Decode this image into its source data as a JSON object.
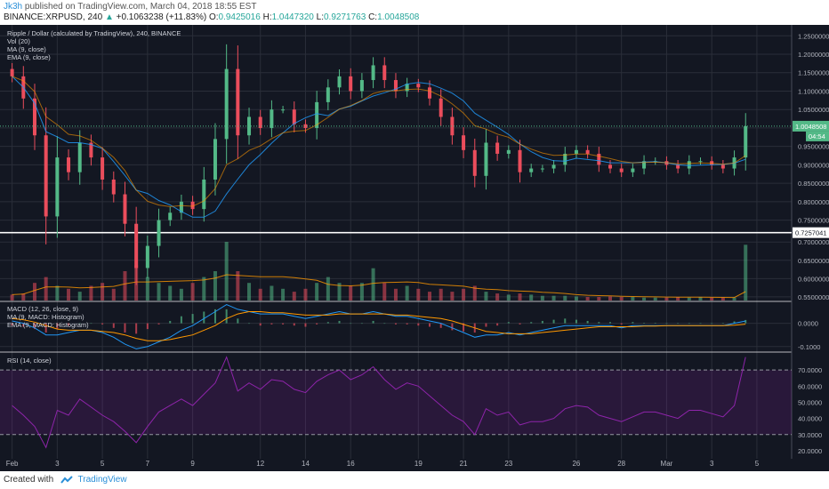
{
  "header": {
    "user": "Jk3h",
    "published_text": "published on TradingView.com, March 04, 2018 18:55 EST",
    "symbol_interval": "BINANCE:XRPUSD, 240",
    "change_arrow": "▲",
    "change_text": "+0.1063238 (+11.83%)",
    "o_label": "O:",
    "o_value": "0.9425016",
    "h_label": "H:",
    "h_value": "1.0447320",
    "l_label": "L:",
    "l_value": "0.9271763",
    "c_label": "C:",
    "c_value": "1.0048508",
    "price_label": "1.0048508"
  },
  "footer": {
    "created_with": "Created with",
    "brand": "TradingView"
  },
  "colors": {
    "background": "#131722",
    "up": "#53b987",
    "down": "#eb4d5c",
    "ma": "#2196f3",
    "ema": "#ff9800",
    "rsi": "#8e24aa",
    "grid": "#2a2e39"
  },
  "chart_data": [
    {
      "type": "candlestick",
      "title": "Ripple / Dollar (calculated by TradingView), 240, BINANCE",
      "indicators": [
        "Vol (20)",
        "MA (9, close)",
        "EMA (9, close)"
      ],
      "x_ticks": [
        "Feb",
        "3",
        "5",
        "7",
        "9",
        "12",
        "14",
        "16",
        "19",
        "21",
        "23",
        "26",
        "28",
        "Mar",
        "3",
        "5"
      ],
      "ylim": [
        0.72,
        1.27
      ],
      "y_ticks": [
        "1.2500000",
        "1.2000000",
        "1.1500000",
        "1.1000000",
        "1.0500000",
        "1.0000000",
        "0.9500000",
        "0.9000000",
        "0.8500000",
        "0.8000000",
        "0.7500000"
      ],
      "last_price": "1.0048508",
      "countdown": "04:54",
      "x_days": [
        0,
        0.5,
        1,
        1.5,
        2,
        2.5,
        3,
        3.5,
        4,
        4.5,
        5,
        5.5,
        6,
        6.5,
        7,
        7.5,
        8,
        8.5,
        9,
        9.5,
        10,
        10.5,
        11,
        11.5,
        12,
        12.5,
        13,
        13.5,
        14,
        14.5,
        15,
        15.5,
        16,
        16.5,
        17,
        17.5,
        18,
        18.5,
        19,
        19.5,
        20,
        20.5,
        21,
        21.5,
        22,
        22.5,
        23,
        23.5,
        24,
        24.5,
        25,
        25.5,
        26,
        26.5,
        27,
        27.5,
        28,
        28.5,
        29,
        29.5,
        30,
        30.5,
        31,
        31.5,
        32,
        32.5
      ],
      "close": [
        1.14,
        1.08,
        0.98,
        0.76,
        0.92,
        0.88,
        0.96,
        0.92,
        0.86,
        0.82,
        0.74,
        0.62,
        0.68,
        0.75,
        0.77,
        0.8,
        0.78,
        0.86,
        0.97,
        1.16,
        0.98,
        1.03,
        1.0,
        1.05,
        1.05,
        1.01,
        1.0,
        1.07,
        1.11,
        1.14,
        1.1,
        1.13,
        1.17,
        1.13,
        1.1,
        1.12,
        1.11,
        1.08,
        1.03,
        0.98,
        0.94,
        0.87,
        0.96,
        0.93,
        0.94,
        0.88,
        0.89,
        0.89,
        0.9,
        0.93,
        0.94,
        0.93,
        0.9,
        0.89,
        0.88,
        0.89,
        0.91,
        0.91,
        0.9,
        0.89,
        0.91,
        0.91,
        0.9,
        0.89,
        0.92,
        1.0048508
      ],
      "volume_ylim": [
        0.54,
        0.72
      ],
      "volume_ticks": [
        "0.7257041",
        "0.7000000",
        "0.6500000",
        "0.6000000",
        "0.5500000"
      ],
      "volume_marker": "0.7257041",
      "volume_relative": [
        0.1,
        0.12,
        0.3,
        0.4,
        0.25,
        0.2,
        0.15,
        0.25,
        0.3,
        0.2,
        0.5,
        0.6,
        0.4,
        0.3,
        0.25,
        0.2,
        0.3,
        0.4,
        0.5,
        1.0,
        0.5,
        0.3,
        0.2,
        0.25,
        0.2,
        0.15,
        0.2,
        0.3,
        0.4,
        0.3,
        0.25,
        0.3,
        0.55,
        0.3,
        0.2,
        0.25,
        0.2,
        0.15,
        0.2,
        0.15,
        0.2,
        0.25,
        0.15,
        0.12,
        0.1,
        0.12,
        0.1,
        0.08,
        0.08,
        0.08,
        0.07,
        0.06,
        0.06,
        0.07,
        0.06,
        0.06,
        0.05,
        0.05,
        0.05,
        0.06,
        0.05,
        0.06,
        0.05,
        0.05,
        0.05,
        0.95
      ]
    },
    {
      "type": "line",
      "title": "MACD (12, 26, close, 9)",
      "indicators": [
        "MA (9, MACD: Histogram)",
        "EMA (9, MACD: Histogram)"
      ],
      "y_ticks": [
        "0.0000",
        "-0.1000"
      ],
      "ylim": [
        -0.12,
        0.09
      ],
      "macd": [
        0.01,
        0.0,
        -0.02,
        -0.05,
        -0.05,
        -0.04,
        -0.03,
        -0.03,
        -0.04,
        -0.06,
        -0.09,
        -0.11,
        -0.1,
        -0.08,
        -0.06,
        -0.03,
        -0.01,
        0.02,
        0.05,
        0.08,
        0.06,
        0.05,
        0.04,
        0.04,
        0.04,
        0.03,
        0.02,
        0.03,
        0.04,
        0.05,
        0.04,
        0.04,
        0.05,
        0.04,
        0.03,
        0.03,
        0.02,
        0.01,
        0.0,
        -0.02,
        -0.04,
        -0.06,
        -0.05,
        -0.05,
        -0.04,
        -0.05,
        -0.04,
        -0.03,
        -0.02,
        -0.01,
        -0.01,
        -0.01,
        -0.01,
        -0.01,
        -0.02,
        -0.01,
        -0.01,
        -0.01,
        -0.01,
        -0.01,
        -0.01,
        -0.01,
        -0.01,
        -0.01,
        0.0,
        0.01
      ],
      "signal": [
        0.02,
        0.015,
        0.005,
        -0.01,
        -0.025,
        -0.03,
        -0.03,
        -0.03,
        -0.035,
        -0.04,
        -0.05,
        -0.065,
        -0.075,
        -0.075,
        -0.07,
        -0.06,
        -0.05,
        -0.03,
        -0.01,
        0.02,
        0.04,
        0.05,
        0.05,
        0.045,
        0.045,
        0.04,
        0.035,
        0.035,
        0.035,
        0.04,
        0.04,
        0.04,
        0.04,
        0.04,
        0.035,
        0.035,
        0.03,
        0.025,
        0.02,
        0.01,
        -0.005,
        -0.02,
        -0.035,
        -0.04,
        -0.045,
        -0.045,
        -0.045,
        -0.04,
        -0.035,
        -0.03,
        -0.025,
        -0.02,
        -0.015,
        -0.015,
        -0.015,
        -0.015,
        -0.012,
        -0.012,
        -0.01,
        -0.01,
        -0.01,
        -0.01,
        -0.01,
        -0.01,
        -0.008,
        -0.004
      ]
    },
    {
      "type": "line",
      "title": "RSI (14, close)",
      "y_ticks": [
        "70.0000",
        "60.0000",
        "50.0000",
        "40.0000",
        "30.0000",
        "20.0000"
      ],
      "ylim": [
        15,
        80
      ],
      "bands": [
        30,
        70
      ],
      "rsi": [
        48,
        42,
        35,
        22,
        45,
        42,
        52,
        47,
        42,
        38,
        32,
        25,
        35,
        44,
        48,
        52,
        48,
        55,
        62,
        78,
        57,
        62,
        58,
        64,
        63,
        58,
        56,
        63,
        67,
        70,
        64,
        67,
        72,
        64,
        58,
        62,
        60,
        54,
        48,
        42,
        38,
        30,
        46,
        42,
        44,
        36,
        38,
        38,
        40,
        46,
        48,
        47,
        42,
        40,
        38,
        41,
        44,
        44,
        42,
        40,
        45,
        45,
        43,
        41,
        48,
        78
      ]
    }
  ]
}
